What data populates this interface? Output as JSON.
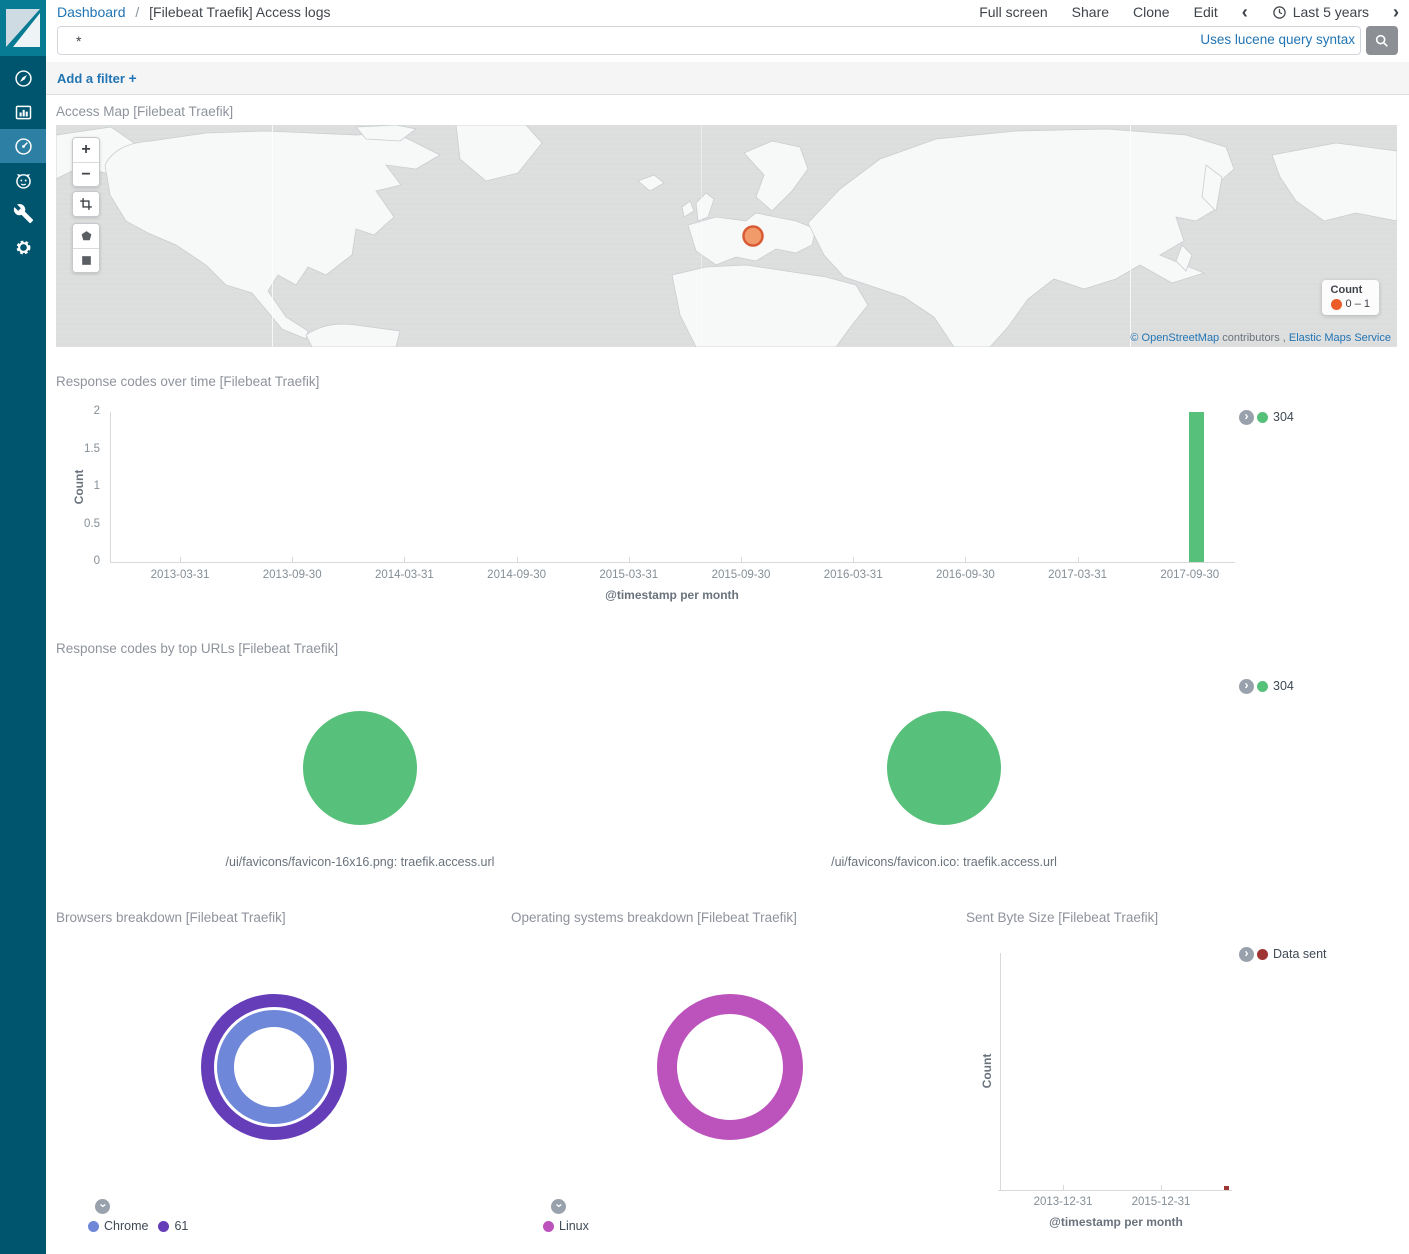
{
  "header": {
    "breadcrumb": {
      "root": "Dashboard",
      "separator": "/",
      "current": "[Filebeat Traefik] Access logs"
    },
    "nav": {
      "full_screen": "Full screen",
      "share": "Share",
      "clone": "Clone",
      "edit": "Edit"
    },
    "time_picker": {
      "label": "Last 5 years",
      "prev": "‹",
      "next": "›",
      "icon": "clock-icon"
    }
  },
  "query_bar": {
    "value": "*",
    "hint": "Uses lucene query syntax",
    "submit_icon": "search-icon"
  },
  "filter_bar": {
    "add_label": "Add a filter",
    "plus": "+"
  },
  "sidebar": {
    "items": [
      {
        "id": "discover",
        "icon": "compass-icon"
      },
      {
        "id": "visualize",
        "icon": "bar-chart-icon"
      },
      {
        "id": "dashboard",
        "icon": "gauge-icon",
        "active": true
      },
      {
        "id": "timelion",
        "icon": "timelion-icon"
      },
      {
        "id": "dev-tools",
        "icon": "wrench-icon"
      },
      {
        "id": "management",
        "icon": "gear-icon"
      }
    ]
  },
  "panels": {
    "map": {
      "title": "Access Map [Filebeat Traefik]",
      "legend_title": "Count",
      "legend_range": "0 – 1",
      "legend_dot_color": "#ed5c28",
      "marker_fill": "#f0905a",
      "marker_stroke": "#d95b35",
      "attribution": {
        "link1": "© OpenStreetMap",
        "middle": "contributors ,",
        "link2": "Elastic Maps Service"
      },
      "controls": [
        "zoom-in",
        "zoom-out",
        "fit-bounds",
        "draw-polygon",
        "draw-rectangle"
      ]
    },
    "response_over_time": {
      "title": "Response codes over time [Filebeat Traefik]",
      "legend": {
        "label": "304",
        "color": "#57c17b"
      }
    },
    "top_urls": {
      "title": "Response codes by top URLs [Filebeat Traefik]",
      "legend": {
        "label": "304",
        "color": "#57c17b"
      }
    },
    "browsers": {
      "title": "Browsers breakdown [Filebeat Traefik]"
    },
    "os": {
      "title": "Operating systems breakdown [Filebeat Traefik]"
    },
    "sent_bytes": {
      "title": "Sent Byte Size [Filebeat Traefik]",
      "legend": {
        "label": "Data sent",
        "color": "#9e3533"
      }
    }
  },
  "chart_data": [
    {
      "id": "response-codes-over-time",
      "type": "bar",
      "title": "Response codes over time [Filebeat Traefik]",
      "xlabel": "@timestamp per month",
      "ylabel": "Count",
      "ylim": [
        0,
        2
      ],
      "yticks": [
        0,
        0.5,
        1,
        1.5,
        2
      ],
      "grid": false,
      "legend_position": "right",
      "categories": [
        "2013-03-31",
        "2013-09-30",
        "2014-03-31",
        "2014-09-30",
        "2015-03-31",
        "2015-09-30",
        "2016-03-31",
        "2016-09-30",
        "2017-03-31",
        "2017-09-30"
      ],
      "series": [
        {
          "name": "304",
          "color": "#57c17b",
          "values": [
            0,
            0,
            0,
            0,
            0,
            0,
            0,
            0,
            0,
            2
          ]
        }
      ]
    },
    {
      "id": "response-codes-top-url-1",
      "type": "pie",
      "subtitle": "/ui/favicons/favicon-16x16.png: traefik.access.url",
      "slices": [
        {
          "label": "304",
          "percent": 100,
          "color": "#57c17b"
        }
      ]
    },
    {
      "id": "response-codes-top-url-2",
      "type": "pie",
      "subtitle": "/ui/favicons/favicon.ico: traefik.access.url",
      "slices": [
        {
          "label": "304",
          "percent": 100,
          "color": "#57c17b"
        }
      ]
    },
    {
      "id": "browsers-breakdown",
      "type": "donut",
      "title": "Browsers breakdown [Filebeat Traefik]",
      "rings": [
        {
          "level": "browser (inner)",
          "slices": [
            {
              "label": "Chrome",
              "percent": 100,
              "color": "#6f87d8"
            }
          ]
        },
        {
          "level": "version (outer)",
          "slices": [
            {
              "label": "61",
              "percent": 100,
              "color": "#663db8"
            }
          ]
        }
      ],
      "legend": [
        {
          "label": "Chrome",
          "color": "#6f87d8"
        },
        {
          "label": "61",
          "color": "#663db8"
        }
      ]
    },
    {
      "id": "os-breakdown",
      "type": "donut",
      "title": "Operating systems breakdown [Filebeat Traefik]",
      "rings": [
        {
          "level": "os",
          "slices": [
            {
              "label": "Linux",
              "percent": 100,
              "color": "#bc52bc"
            }
          ]
        }
      ],
      "legend": [
        {
          "label": "Linux",
          "color": "#bc52bc"
        }
      ]
    },
    {
      "id": "sent-byte-size",
      "type": "bar",
      "title": "Sent Byte Size [Filebeat Traefik]",
      "xlabel": "@timestamp per month",
      "ylabel": "Count",
      "xticks": [
        "2013-12-31",
        "2015-12-31"
      ],
      "series": [
        {
          "name": "Data sent",
          "color": "#9e3533"
        }
      ],
      "marker": {
        "x_fraction": 0.965,
        "height_fraction": 0.018,
        "note": "tiny bar near right end of axis (~2017)"
      }
    }
  ]
}
